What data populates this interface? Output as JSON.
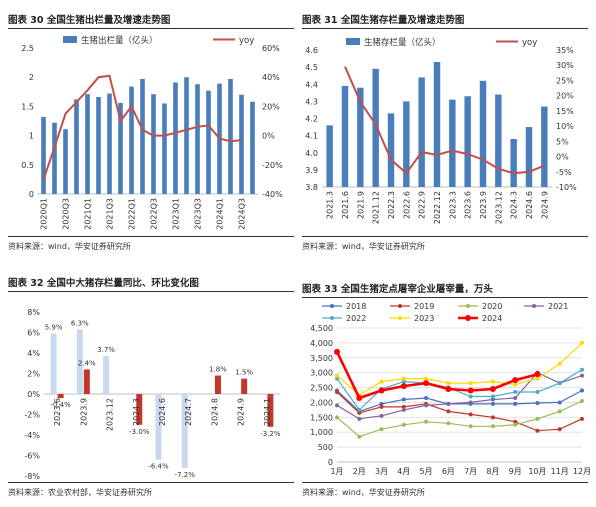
{
  "panels": [
    {
      "title": "图表 30  全国生猪出栏量及增速走势图",
      "source": "资料来源：wind，华安证券研究所"
    },
    {
      "title": "图表 31  全国生猪存栏量及增速走势图",
      "source": "资料来源：wind，华安证券研究所"
    },
    {
      "title": "图表 32  全国中大猪存栏量同比、环比变化图",
      "source": "资料来源：农业农村部，华安证券研究所"
    },
    {
      "title": "图表 33  全国生猪定点屠宰企业屠宰量，万头",
      "source": "资料来源：wind，华安证券研究所"
    }
  ],
  "colors": {
    "bar": "#4a7ebb",
    "line": "#c0504d",
    "bar_light": "#c6d9f1",
    "bar_dark": "#c0392b"
  },
  "chart_data": [
    {
      "type": "bar",
      "categories": [
        "2020Q1",
        "2020Q2",
        "2020Q3",
        "2020Q4",
        "2021Q1",
        "2021Q2",
        "2021Q3",
        "2021Q4",
        "2022Q1",
        "2022Q2",
        "2022Q3",
        "2022Q4",
        "2023Q1",
        "2023Q2",
        "2023Q3",
        "2023Q4",
        "2024Q1",
        "2024Q2",
        "2024Q3",
        "2024Q4"
      ],
      "tick_labels": [
        "2020Q1",
        "2020Q3",
        "2021Q1",
        "2021Q3",
        "2022Q1",
        "2022Q3",
        "2023Q1",
        "2023Q3",
        "2024Q1",
        "2024Q3"
      ],
      "series": [
        {
          "name": "生猪出栏量（亿头）",
          "type": "bar",
          "axis": "left",
          "values": [
            1.32,
            1.22,
            1.11,
            1.62,
            1.71,
            1.66,
            1.72,
            1.56,
            1.84,
            1.97,
            1.71,
            1.55,
            1.91,
            2.0,
            1.88,
            1.77,
            1.89,
            1.97,
            1.7,
            1.58
          ]
        },
        {
          "name": "yoy",
          "type": "line",
          "axis": "right",
          "values": [
            -30,
            -8,
            15,
            23,
            31,
            40,
            41,
            10,
            20,
            4,
            0,
            0,
            2,
            4,
            6,
            7,
            -2,
            -4,
            -3,
            null
          ]
        }
      ],
      "ylim_left": [
        0,
        2.5
      ],
      "yticks_left": [
        0,
        0.5,
        1,
        1.5,
        2,
        2.5
      ],
      "yticklabels_left": [
        "0",
        "0.5",
        "1",
        "1.5",
        "2",
        "2.5"
      ],
      "ylim_right": [
        -40,
        60
      ],
      "yticks_right": [
        -40,
        -20,
        0,
        20,
        40,
        60
      ],
      "yticklabels_right": [
        "-40%",
        "-20%",
        "0%",
        "20%",
        "40%",
        "60%"
      ],
      "legend": "top"
    },
    {
      "type": "bar",
      "categories": [
        "2021.3",
        "2021.6",
        "2021.9",
        "2021.12",
        "2022.3",
        "2022.6",
        "2022.9",
        "2022.12",
        "2023.3",
        "2023.6",
        "2023.9",
        "2023.12",
        "2024.3",
        "2024.6",
        "2024.9"
      ],
      "series": [
        {
          "name": "生猪存栏量（亿头）",
          "type": "bar",
          "axis": "left",
          "values": [
            4.16,
            4.39,
            4.38,
            4.49,
            4.23,
            4.3,
            4.44,
            4.53,
            4.31,
            4.33,
            4.42,
            4.34,
            4.08,
            4.15,
            4.27
          ]
        },
        {
          "name": "yoy",
          "type": "line",
          "axis": "right",
          "values": [
            null,
            29.5,
            18,
            10.5,
            -1,
            -5.5,
            1.5,
            0.5,
            2,
            0.8,
            -1,
            -4,
            -5.5,
            -5,
            -3
          ]
        }
      ],
      "ylim_left": [
        3.8,
        4.6
      ],
      "yticks_left": [
        3.8,
        3.9,
        4.0,
        4.1,
        4.2,
        4.3,
        4.4,
        4.5,
        4.6
      ],
      "yticklabels_left": [
        "3.8",
        "3.9",
        "4.0",
        "4.1",
        "4.2",
        "4.3",
        "4.4",
        "4.5",
        "4.6"
      ],
      "ylim_right": [
        -10,
        35
      ],
      "yticks_right": [
        -10,
        -5,
        0,
        5,
        10,
        15,
        20,
        25,
        30,
        35
      ],
      "yticklabels_right": [
        "-10%",
        "-5%",
        "0%",
        "5%",
        "10%",
        "15%",
        "20%",
        "25%",
        "30%",
        "35%"
      ],
      "legend": "top"
    },
    {
      "type": "bar",
      "categories": [
        "2023.6",
        "2023.9",
        "2023.12",
        "2024.3",
        "2024.6",
        "2024.7",
        "2024.8",
        "2024.9",
        "2024.1"
      ],
      "series": [
        {
          "name": "同比",
          "values": [
            5.9,
            6.3,
            3.7,
            null,
            -6.4,
            -7.2,
            null,
            null,
            null
          ]
        },
        {
          "name": "环比",
          "values": [
            -0.4,
            2.4,
            null,
            -3.0,
            null,
            null,
            1.8,
            1.5,
            -3.2
          ]
        }
      ],
      "data_labels": [
        [
          "5.9%",
          "6.3%",
          "3.7%",
          null,
          "-6.4%",
          "-7.2%",
          null,
          null,
          null
        ],
        [
          "-0.4%",
          "2.4%",
          null,
          "-3.0%",
          null,
          null,
          "1.8%",
          "1.5%",
          "-3.2%"
        ]
      ],
      "ylim": [
        -8,
        8
      ],
      "yticks": [
        -8,
        -6,
        -4,
        -2,
        0,
        2,
        4,
        6,
        8
      ],
      "yticklabels": [
        "-8%",
        "-6%",
        "-4%",
        "-2%",
        "0%",
        "2%",
        "4%",
        "6%",
        "8%"
      ]
    },
    {
      "type": "line",
      "categories": [
        "1月",
        "2月",
        "3月",
        "4月",
        "5月",
        "6月",
        "7月",
        "8月",
        "9月",
        "10月",
        "11月",
        "12月"
      ],
      "series": [
        {
          "name": "2018",
          "color": "#4472c4",
          "values": [
            2400,
            1700,
            1950,
            2100,
            2150,
            1950,
            1950,
            1950,
            1950,
            1980,
            2000,
            2400
          ]
        },
        {
          "name": "2019",
          "color": "#c0392b",
          "values": [
            2350,
            1650,
            1850,
            1850,
            1950,
            1700,
            1600,
            1500,
            1350,
            1050,
            1100,
            1450
          ]
        },
        {
          "name": "2020",
          "color": "#9bbb59",
          "values": [
            1500,
            850,
            1100,
            1250,
            1350,
            1300,
            1200,
            1200,
            1250,
            1450,
            1700,
            2050
          ]
        },
        {
          "name": "2021",
          "color": "#8064a2",
          "values": [
            1900,
            1450,
            1550,
            1750,
            1900,
            1950,
            2000,
            2100,
            2150,
            3000,
            2650,
            2900
          ]
        },
        {
          "name": "2022",
          "color": "#4bacc6",
          "values": [
            2800,
            1750,
            2450,
            2700,
            2650,
            2500,
            2200,
            2200,
            2350,
            2350,
            2650,
            3100
          ]
        },
        {
          "name": "2023",
          "color": "#ffd700",
          "values": [
            2900,
            2250,
            2700,
            2800,
            2800,
            2650,
            2650,
            2700,
            2600,
            2800,
            3300,
            4000
          ]
        },
        {
          "name": "2024",
          "color": "#ff0000",
          "values": [
            3700,
            2150,
            2400,
            2550,
            2650,
            2450,
            2400,
            2450,
            2750,
            2950,
            null,
            null
          ]
        }
      ],
      "ylim": [
        0,
        4500
      ],
      "yticks": [
        0,
        500,
        1000,
        1500,
        2000,
        2500,
        3000,
        3500,
        4000,
        4500
      ],
      "yticklabels": [
        "0",
        "500",
        "1,000",
        "1,500",
        "2,000",
        "2,500",
        "3,000",
        "3,500",
        "4,000",
        "4,500"
      ],
      "grid": true,
      "legend": "top"
    }
  ]
}
